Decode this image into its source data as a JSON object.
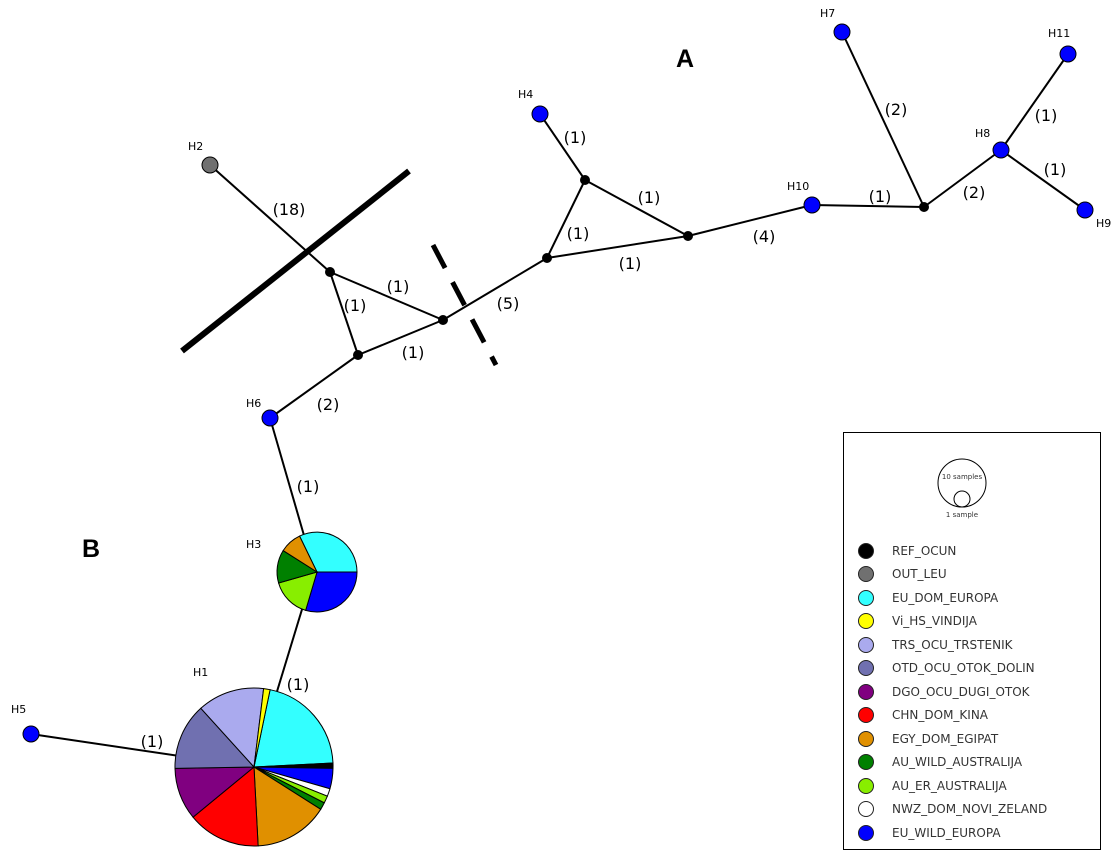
{
  "section_labels": {
    "a": "A",
    "b": "B"
  },
  "nodes": [
    {
      "id": "H1",
      "label": "H1"
    },
    {
      "id": "H2",
      "label": "H2"
    },
    {
      "id": "H3",
      "label": "H3"
    },
    {
      "id": "H4",
      "label": "H4"
    },
    {
      "id": "H5",
      "label": "H5"
    },
    {
      "id": "H6",
      "label": "H6"
    },
    {
      "id": "H7",
      "label": "H7"
    },
    {
      "id": "H8",
      "label": "H8"
    },
    {
      "id": "H9",
      "label": "H9"
    },
    {
      "id": "H10",
      "label": "H10"
    },
    {
      "id": "H11",
      "label": "H11"
    }
  ],
  "mutation_labels": [
    "(18)",
    "(1)",
    "(1)",
    "(1)",
    "(2)",
    "(1)",
    "(5)",
    "(1)",
    "(1)",
    "(1)",
    "(1)",
    "(4)",
    "(1)",
    "(2)",
    "(2)",
    "(1)",
    "(1)",
    "(1)",
    "(1)"
  ],
  "legend": {
    "scale_large": "10 samples",
    "scale_small": "1 sample",
    "items": [
      {
        "label": "REF_OCUN",
        "color": "#000000"
      },
      {
        "label": "OUT_LEU",
        "color": "#707070"
      },
      {
        "label": "EU_DOM_EUROPA",
        "color": "#33ffff"
      },
      {
        "label": "Vi_HS_VINDIJA",
        "color": "#ffff00"
      },
      {
        "label": "TRS_OCU_TRSTENIK",
        "color": "#aaaaee"
      },
      {
        "label": "OTD_OCU_OTOK_DOLIN",
        "color": "#7070b0"
      },
      {
        "label": "DGO_OCU_DUGI_OTOK",
        "color": "#800080"
      },
      {
        "label": "CHN_DOM_KINA",
        "color": "#ff0000"
      },
      {
        "label": "EGY_DOM_EGIPAT",
        "color": "#e09000"
      },
      {
        "label": "AU_WILD_AUSTRALIJA",
        "color": "#008000"
      },
      {
        "label": "AU_ER_AUSTRALIJA",
        "color": "#88ee00"
      },
      {
        "label": "NWZ_DOM_NOVI_ZELAND",
        "color": "#ffffff"
      },
      {
        "label": "EU_WILD_EUROPA",
        "color": "#0000ff"
      }
    ]
  }
}
